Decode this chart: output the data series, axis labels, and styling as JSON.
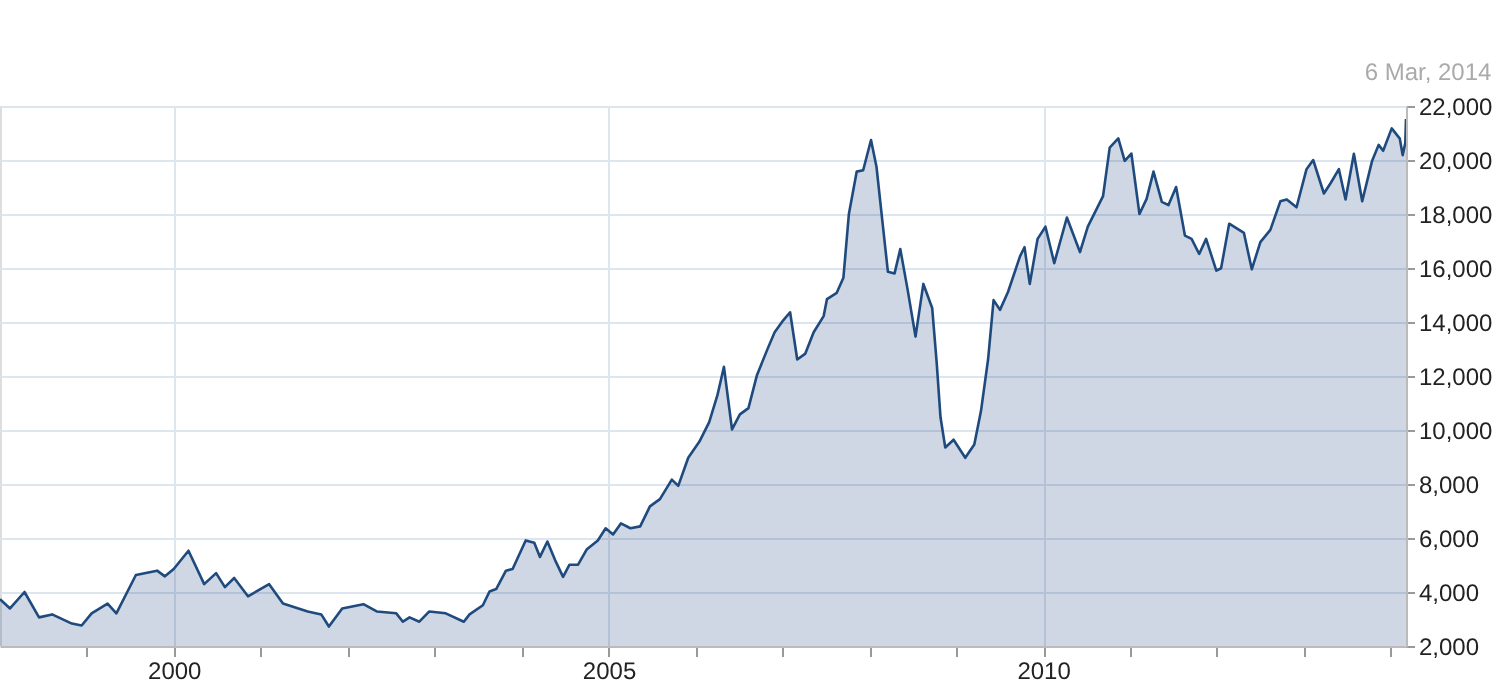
{
  "chart_data": {
    "type": "area",
    "annotations": [
      "6 Mar, 2014"
    ],
    "x": [
      "1998-01-01",
      "1998-02-12",
      "1998-04-14",
      "1998-06-14",
      "1998-08-08",
      "1998-10-30",
      "1998-12-10",
      "1999-01-21",
      "1999-03-29",
      "1999-05-05",
      "1999-07-26",
      "1999-10-23",
      "1999-11-25",
      "2000-01-01",
      "2000-03-03",
      "2000-05-08",
      "2000-06-27",
      "2000-08-03",
      "2000-09-11",
      "2000-11-08",
      "2001-02-05",
      "2001-04-04",
      "2001-07-17",
      "2001-09-12",
      "2001-10-14",
      "2001-12-09",
      "2002-03-08",
      "2002-05-03",
      "2002-07-24",
      "2002-08-21",
      "2002-09-18",
      "2002-10-29",
      "2002-12-10",
      "2003-02-17",
      "2003-05-04",
      "2003-05-28",
      "2003-07-23",
      "2003-08-20",
      "2003-09-17",
      "2003-10-28",
      "2003-11-25",
      "2004-01-19",
      "2004-02-24",
      "2004-03-19",
      "2004-04-19",
      "2004-05-21",
      "2004-06-24",
      "2004-07-21",
      "2004-08-26",
      "2004-10-01",
      "2004-11-17",
      "2004-12-20",
      "2005-01-20",
      "2005-02-22",
      "2005-04-03",
      "2005-05-14",
      "2005-06-24",
      "2005-08-05",
      "2005-09-24",
      "2005-10-21",
      "2005-12-02",
      "2006-01-18",
      "2006-02-28",
      "2006-04-04",
      "2006-05-01",
      "2006-06-04",
      "2006-07-07",
      "2006-08-12",
      "2006-09-17",
      "2006-11-03",
      "2006-11-30",
      "2007-01-06",
      "2007-02-03",
      "2007-03-05",
      "2007-04-08",
      "2007-05-13",
      "2007-06-24",
      "2007-07-08",
      "2007-08-18",
      "2007-09-15",
      "2007-10-08",
      "2007-11-10",
      "2007-12-07",
      "2008-01-09",
      "2008-02-01",
      "2008-02-28",
      "2008-03-20",
      "2008-04-17",
      "2008-05-11",
      "2008-06-11",
      "2008-07-14",
      "2008-08-16",
      "2008-09-22",
      "2008-10-11",
      "2008-10-27",
      "2008-11-16",
      "2008-12-21",
      "2009-02-08",
      "2009-03-18",
      "2009-04-15",
      "2009-05-15",
      "2009-06-07",
      "2009-07-04",
      "2009-08-07",
      "2009-09-26",
      "2009-10-15",
      "2009-11-06",
      "2009-12-09",
      "2010-01-11",
      "2010-02-17",
      "2010-04-11",
      "2010-06-05",
      "2010-07-08",
      "2010-09-10",
      "2010-10-08",
      "2010-11-13",
      "2010-12-10",
      "2011-01-07",
      "2011-02-10",
      "2011-03-12",
      "2011-04-10",
      "2011-05-15",
      "2011-06-12",
      "2011-07-14",
      "2011-08-20",
      "2011-09-17",
      "2011-10-19",
      "2011-11-17",
      "2011-12-30",
      "2012-01-19",
      "2012-02-22",
      "2012-04-24",
      "2012-05-27",
      "2012-07-02",
      "2012-08-13",
      "2012-09-24",
      "2012-10-21",
      "2012-12-01",
      "2013-01-12",
      "2013-02-09",
      "2013-03-26",
      "2013-04-23",
      "2013-05-28",
      "2013-06-25",
      "2013-07-30",
      "2013-09-03",
      "2013-10-14",
      "2013-11-11",
      "2013-11-30",
      "2014-01-05",
      "2014-02-08",
      "2014-02-20",
      "2014-03-03",
      "2014-03-06"
    ],
    "series": [
      {
        "color": "#1f4a7e",
        "values": [
          3730,
          3390,
          4000,
          3060,
          3170,
          2830,
          2760,
          3210,
          3570,
          3210,
          4630,
          4790,
          4580,
          4850,
          5530,
          4290,
          4700,
          4180,
          4520,
          3840,
          4290,
          3570,
          3280,
          3170,
          2720,
          3390,
          3550,
          3280,
          3210,
          2900,
          3060,
          2900,
          3280,
          3210,
          2900,
          3170,
          3510,
          4020,
          4110,
          4790,
          4850,
          5910,
          5820,
          5300,
          5870,
          5190,
          4560,
          5010,
          5010,
          5570,
          5910,
          6360,
          6130,
          6540,
          6360,
          6430,
          7170,
          7440,
          8160,
          7930,
          8970,
          9570,
          10290,
          11300,
          12340,
          10020,
          10580,
          10810,
          12040,
          13060,
          13620,
          14070,
          14360,
          12610,
          12830,
          13620,
          14220,
          14850,
          15080,
          15640,
          18000,
          19570,
          19620,
          20740,
          19750,
          17550,
          15860,
          15800,
          16700,
          15190,
          13460,
          15410,
          14520,
          12490,
          10470,
          9350,
          9640,
          8970,
          9460,
          10700,
          12620,
          14810,
          14450,
          15120,
          16430,
          16770,
          15410,
          17080,
          17530,
          16180,
          17870,
          16590,
          17530,
          18660,
          20460,
          20800,
          19970,
          20240,
          18000,
          18560,
          19570,
          18450,
          18330,
          19000,
          17200,
          17080,
          16520,
          17080,
          15900,
          15990,
          17640,
          17300,
          15950,
          16960,
          17410,
          18470,
          18540,
          18250,
          19660,
          20000,
          18760,
          19140,
          19660,
          18540,
          20230,
          18470,
          19950,
          20560,
          20340,
          21170,
          20790,
          20180,
          20630,
          21520
        ]
      }
    ],
    "xlim": [
      "1998-01-01",
      "2014-03-06"
    ],
    "xticks": [
      {
        "value": "1999",
        "label": null
      },
      "2000",
      {
        "value": "2001",
        "label": null
      },
      {
        "value": "2002",
        "label": null
      },
      {
        "value": "2003",
        "label": null
      },
      {
        "value": "2004",
        "label": null
      },
      "2005",
      {
        "value": "2006",
        "label": null
      },
      {
        "value": "2007",
        "label": null
      },
      {
        "value": "2008",
        "label": null
      },
      {
        "value": "2009",
        "label": null
      },
      "2010",
      {
        "value": "2011",
        "label": null
      },
      {
        "value": "2012",
        "label": null
      },
      {
        "value": "2013",
        "label": null
      },
      {
        "value": "2014",
        "label": null
      }
    ],
    "ylim": [
      2000,
      22000
    ],
    "yticks": [
      {
        "value": 2000,
        "label": "2,000"
      },
      {
        "value": 4000,
        "label": "4,000"
      },
      {
        "value": 6000,
        "label": "6,000"
      },
      {
        "value": 8000,
        "label": "8,000"
      },
      {
        "value": 10000,
        "label": "10,000"
      },
      {
        "value": 12000,
        "label": "12,000"
      },
      {
        "value": 14000,
        "label": "14,000"
      },
      {
        "value": 16000,
        "label": "16,000"
      },
      {
        "value": 18000,
        "label": "18,000"
      },
      {
        "value": 20000,
        "label": "20,000"
      },
      {
        "value": 22000,
        "label": "22,000"
      }
    ],
    "grid": true
  }
}
